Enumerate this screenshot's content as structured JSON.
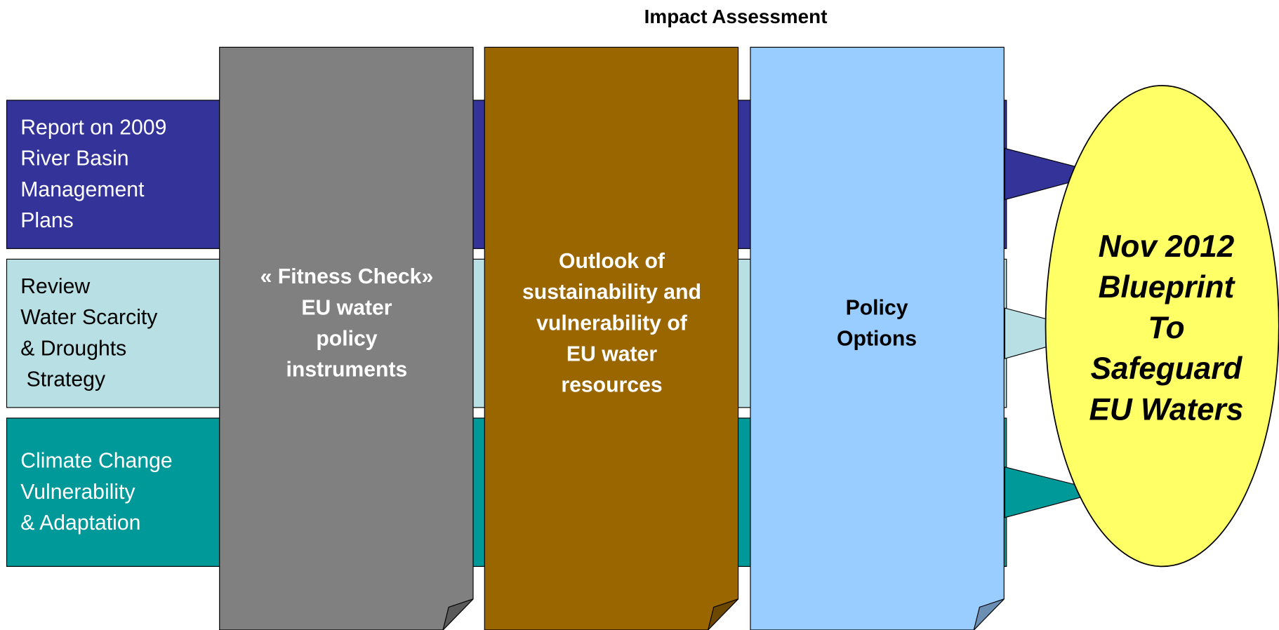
{
  "title": "Impact Assessment",
  "rows": [
    {
      "lines": [
        "Report on 2009",
        "River Basin",
        "Management",
        "Plans"
      ]
    },
    {
      "lines": [
        "Review",
        "Water Scarcity",
        "& Droughts",
        " Strategy"
      ]
    },
    {
      "lines": [
        "Climate Change",
        "Vulnerability",
        "& Adaptation"
      ]
    }
  ],
  "columns": [
    {
      "lines": [
        "« Fitness Check»",
        "EU water",
        "policy",
        "instruments"
      ]
    },
    {
      "lines": [
        "Outlook of",
        "sustainability and",
        "vulnerability of",
        "EU water",
        "resources"
      ]
    },
    {
      "lines": [
        "Policy",
        "Options"
      ]
    }
  ],
  "outcome": {
    "lines": [
      "Nov 2012",
      "Blueprint",
      "To",
      "Safeguard",
      "EU Waters"
    ]
  }
}
